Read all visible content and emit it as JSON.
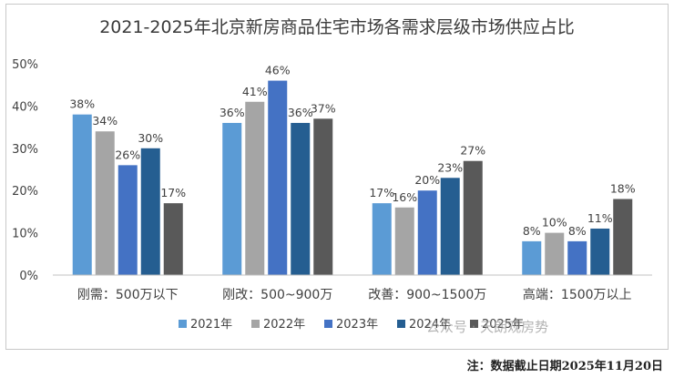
{
  "chart_data": {
    "type": "bar",
    "title": "2021-2025年北京新房商品住宅市场各需求层级市场供应占比",
    "categories": [
      "刚需：500万以下",
      "刚改：500~900万",
      "改善：900~1500万",
      "高端：1500万以上"
    ],
    "series": [
      {
        "name": "2021年",
        "values": [
          38,
          36,
          17,
          8
        ],
        "labels": [
          "38%",
          "36%",
          "17%",
          "8%"
        ]
      },
      {
        "name": "2022年",
        "values": [
          34,
          41,
          16,
          10
        ],
        "labels": [
          "34%",
          "41%",
          "16%",
          "10%"
        ]
      },
      {
        "name": "2023年",
        "values": [
          26,
          46,
          20,
          8
        ],
        "labels": [
          "26%",
          "46%",
          "20%",
          "8%"
        ]
      },
      {
        "name": "2024年",
        "values": [
          30,
          36,
          23,
          11
        ],
        "labels": [
          "30%",
          "36%",
          "23%",
          "11%"
        ]
      },
      {
        "name": "2025年",
        "values": [
          17,
          37,
          27,
          18
        ],
        "labels": [
          "17%",
          "37%",
          "27%",
          "18%"
        ]
      }
    ],
    "yticks": [
      "0%",
      "10%",
      "20%",
      "30%",
      "40%",
      "50%"
    ],
    "ylim": [
      0,
      50
    ],
    "grid": false,
    "legend_position": "bottom",
    "colors": [
      "#5B9BD5",
      "#A5A5A5",
      "#4472C4",
      "#255E91",
      "#595959"
    ]
  },
  "watermark": "公众号 · 天朗观房势",
  "footnote": "注：数据截止日期2025年11月20日"
}
